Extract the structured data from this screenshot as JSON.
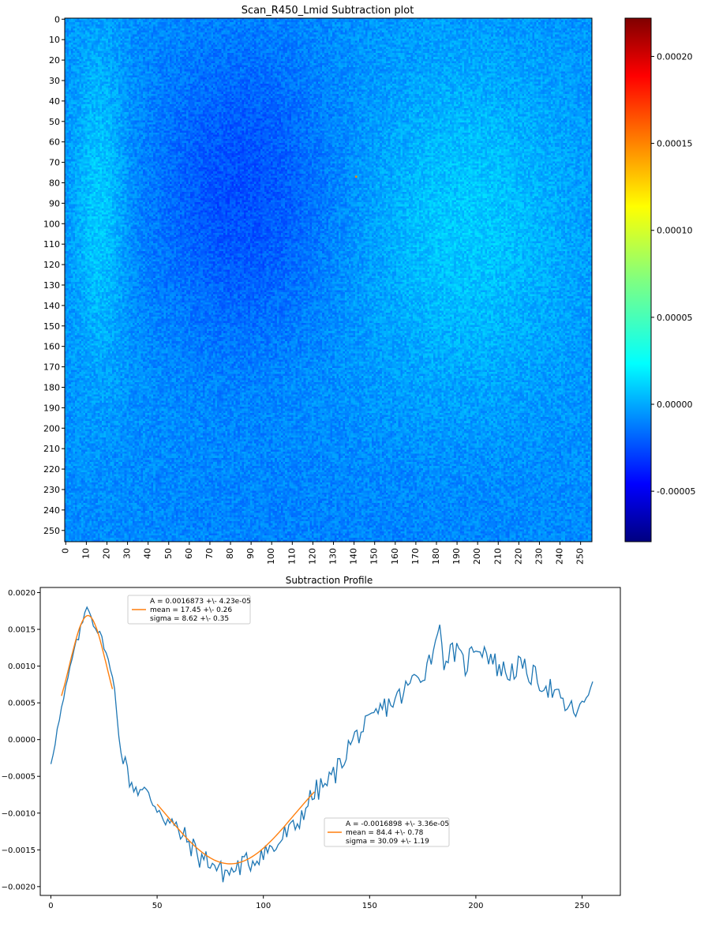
{
  "chart_data": [
    {
      "type": "heatmap",
      "title": "Scan_R450_Lmid Subtraction plot",
      "xlabel": "",
      "ylabel": "",
      "x_ticks": [
        0,
        10,
        20,
        30,
        40,
        50,
        60,
        70,
        80,
        90,
        100,
        110,
        120,
        130,
        140,
        150,
        160,
        170,
        180,
        190,
        200,
        210,
        220,
        230,
        240,
        250
      ],
      "y_ticks": [
        0,
        10,
        20,
        30,
        40,
        50,
        60,
        70,
        80,
        90,
        100,
        110,
        120,
        130,
        140,
        150,
        160,
        170,
        180,
        190,
        200,
        210,
        220,
        230,
        240,
        250
      ],
      "x_range": [
        0,
        256
      ],
      "y_range": [
        0,
        256
      ],
      "colormap": "jet",
      "vmin": -7.9e-05,
      "vmax": 0.000222,
      "colorbar_ticks": [
        "-0.00005",
        "0.00000",
        "0.00005",
        "0.00010",
        "0.00015",
        "0.00020"
      ],
      "colorbar_tick_values": [
        -5e-05,
        0.0,
        5e-05,
        0.0001,
        0.00015,
        0.0002
      ],
      "hotspot_value": 0.000145,
      "description_grid_note": "256x256 noisy map; low (dark blue) region centred near x 85, y 85; higher band near x 10-25 and x 170-220"
    },
    {
      "type": "line",
      "title": "Subtraction Profile",
      "xlabel": "",
      "ylabel": "",
      "xlim": [
        -5,
        268
      ],
      "ylim": [
        -0.00212,
        0.00207
      ],
      "x_ticks": [
        0,
        50,
        100,
        150,
        200,
        250
      ],
      "y_ticks": [
        0.002,
        0.0015,
        0.001,
        0.0005,
        0.0,
        -0.0005,
        -0.001,
        -0.0015,
        -0.002
      ],
      "y_tick_labels": [
        "0.0020",
        "0.0015",
        "0.0010",
        "0.0005",
        "0.0000",
        "−0.0005",
        "−0.0010",
        "−0.0015",
        "−0.0020"
      ],
      "series": [
        {
          "color": "#1f77b4",
          "x": [
            0,
            5,
            10,
            15,
            17,
            20,
            25,
            30,
            33,
            38,
            45,
            50,
            55,
            60,
            65,
            70,
            75,
            80,
            85,
            90,
            95,
            100,
            105,
            110,
            115,
            120,
            125,
            130,
            135,
            140,
            145,
            150,
            155,
            160,
            165,
            170,
            175,
            180,
            182,
            185,
            190,
            195,
            200,
            205,
            210,
            215,
            220,
            225,
            230,
            235,
            240,
            245,
            250,
            255
          ],
          "y": [
            -0.0003,
            0.0004,
            0.0011,
            0.0016,
            0.00185,
            0.0016,
            0.0013,
            0.0007,
            -0.0002,
            -0.0006,
            -0.00075,
            -0.0009,
            -0.0011,
            -0.00125,
            -0.0014,
            -0.0016,
            -0.00165,
            -0.0018,
            -0.0018,
            -0.0017,
            -0.00165,
            -0.0015,
            -0.0015,
            -0.0013,
            -0.0012,
            -0.0009,
            -0.0007,
            -0.0006,
            -0.0004,
            -0.0001,
            0.0001,
            0.0002,
            0.0004,
            0.0005,
            0.0006,
            0.0008,
            0.0009,
            0.0012,
            0.0016,
            0.0011,
            0.0012,
            0.001,
            0.0013,
            0.0012,
            0.001,
            0.0009,
            0.001,
            0.0009,
            0.0008,
            0.0007,
            0.0005,
            0.0004,
            0.0004,
            0.00085
          ]
        },
        {
          "color": "#ff7f0e",
          "fit": "gaussian",
          "A": 0.0016873,
          "mean": 17.45,
          "sigma": 8.62,
          "x_range": [
            5,
            29
          ]
        },
        {
          "color": "#ff7f0e",
          "fit": "gaussian",
          "A": -0.0016898,
          "mean": 84.4,
          "sigma": 30.09,
          "x_range": [
            50,
            124
          ]
        }
      ],
      "legends": [
        {
          "placement": "top-left",
          "lines": [
            "A = 0.0016873 +\\- 4.23e-05",
            "mean = 17.45 +\\- 0.26",
            "sigma = 8.62 +\\- 0.35"
          ]
        },
        {
          "placement": "lower-center",
          "lines": [
            "A = -0.0016898 +\\- 3.36e-05",
            "mean = 84.4 +\\- 0.78",
            "sigma = 30.09 +\\- 1.19"
          ]
        }
      ]
    }
  ]
}
